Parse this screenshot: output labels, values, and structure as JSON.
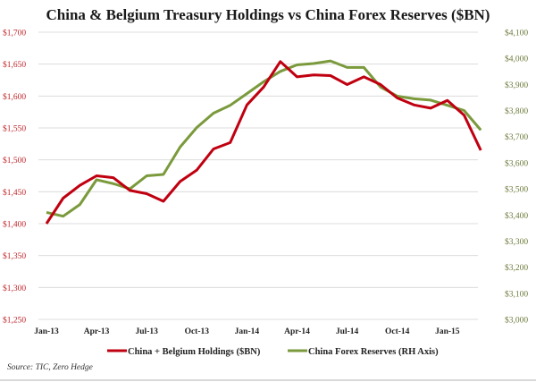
{
  "chart_data": {
    "type": "line",
    "title": "China & Belgium Treasury Holdings vs China Forex Reserves ($BN)",
    "source": "Source: TIC, Zero Hedge",
    "x": [
      "Jan-13",
      "Feb-13",
      "Mar-13",
      "Apr-13",
      "May-13",
      "Jun-13",
      "Jul-13",
      "Aug-13",
      "Sep-13",
      "Oct-13",
      "Nov-13",
      "Dec-13",
      "Jan-14",
      "Feb-14",
      "Mar-14",
      "Apr-14",
      "May-14",
      "Jun-14",
      "Jul-14",
      "Aug-14",
      "Sep-14",
      "Oct-14",
      "Nov-14",
      "Dec-14",
      "Jan-15",
      "Feb-15",
      "Mar-15"
    ],
    "xtick_labels": [
      "Jan-13",
      "Apr-13",
      "Jul-13",
      "Oct-13",
      "Jan-14",
      "Apr-14",
      "Jul-14",
      "Oct-14",
      "Jan-15"
    ],
    "left_axis": {
      "ylim": [
        1250,
        1700
      ],
      "tick_labels": [
        "$1,250",
        "$1,300",
        "$1,350",
        "$1,400",
        "$1,450",
        "$1,500",
        "$1,550",
        "$1,600",
        "$1,650",
        "$1,700"
      ],
      "color": "#c0272d"
    },
    "right_axis": {
      "ylim": [
        3000,
        4100
      ],
      "tick_labels": [
        "$3,000",
        "$3,100",
        "$3,200",
        "$3,300",
        "$3,400",
        "$3,500",
        "$3,600",
        "$3,700",
        "$3,800",
        "$3,900",
        "$4,000",
        "$4,100"
      ],
      "color": "#6b7a3a"
    },
    "grid": true,
    "legend_position": "bottom",
    "series": [
      {
        "name": "China + Belgium Holdings ($BN)",
        "axis": "left",
        "color": "#c00010",
        "values": [
          1400,
          1440,
          1460,
          1475,
          1472,
          1452,
          1447,
          1435,
          1466,
          1484,
          1517,
          1527,
          1586,
          1614,
          1654,
          1630,
          1633,
          1632,
          1618,
          1630,
          1618,
          1597,
          1586,
          1581,
          1593,
          1570,
          1515
        ]
      },
      {
        "name": "China Forex Reserves (RH Axis)",
        "axis": "right",
        "color": "#7a9a3c",
        "values": [
          3410,
          3395,
          3440,
          3535,
          3520,
          3500,
          3550,
          3555,
          3660,
          3735,
          3790,
          3820,
          3865,
          3910,
          3950,
          3975,
          3980,
          3990,
          3965,
          3965,
          3890,
          3855,
          3845,
          3840,
          3820,
          3800,
          3725
        ]
      }
    ]
  }
}
